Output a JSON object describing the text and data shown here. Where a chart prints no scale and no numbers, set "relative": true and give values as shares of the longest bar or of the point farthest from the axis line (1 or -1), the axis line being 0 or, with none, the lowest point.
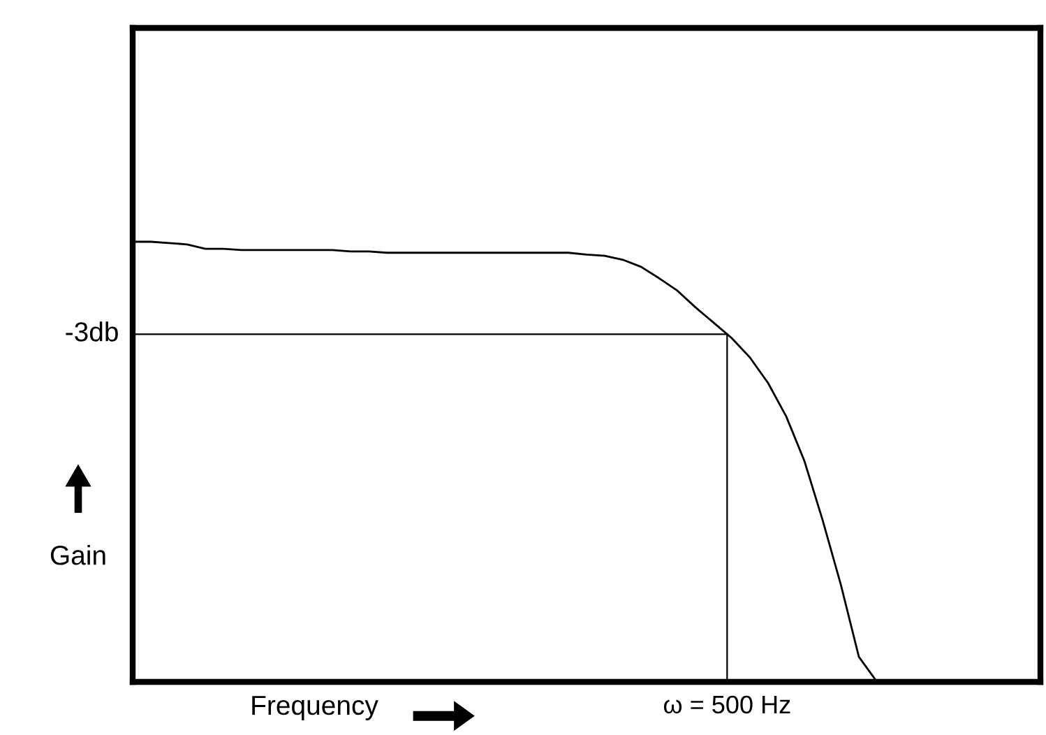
{
  "chart_data": {
    "type": "line",
    "relative": true,
    "xlabel": "Frequency",
    "ylabel": "Gain",
    "color": "#000000",
    "categories": [
      null,
      null,
      null,
      null,
      null,
      null,
      null,
      null,
      null,
      null,
      null,
      null,
      null,
      null,
      null,
      null,
      null,
      null,
      null,
      null,
      null,
      null,
      null,
      null,
      null,
      null,
      null,
      null,
      null,
      null,
      null,
      null,
      null,
      null,
      null,
      null,
      null,
      null,
      null,
      null,
      null,
      null,
      null,
      null,
      null,
      null,
      null,
      null,
      null,
      null,
      null
    ],
    "values": [
      1.0,
      1.0,
      0.997,
      0.994,
      0.984,
      0.984,
      0.981,
      0.981,
      0.981,
      0.981,
      0.981,
      0.981,
      0.978,
      0.978,
      0.975,
      0.975,
      0.975,
      0.975,
      0.975,
      0.975,
      0.975,
      0.975,
      0.975,
      0.975,
      0.975,
      0.971,
      0.968,
      0.959,
      0.943,
      0.917,
      0.889,
      0.851,
      0.816,
      0.781,
      0.737,
      0.679,
      0.603,
      0.502,
      0.368,
      0.222,
      0.057,
      0.0,
      null,
      null,
      null,
      null,
      null,
      null,
      null,
      null,
      null
    ],
    "ref_lines": [
      {
        "axis": "y",
        "value": 0.79,
        "label": "-3db",
        "color": "#000000"
      }
    ],
    "annotations": [
      "ω = 500 Hz"
    ]
  }
}
